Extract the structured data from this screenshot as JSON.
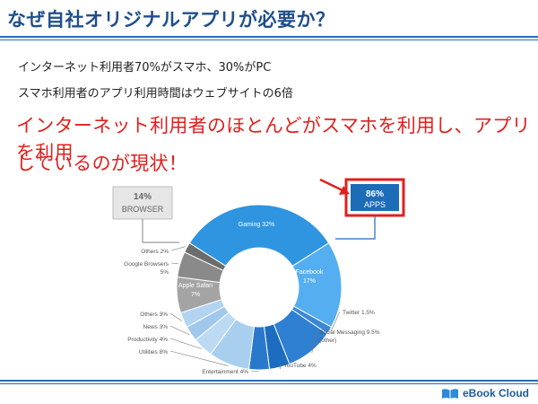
{
  "slide": {
    "title": "なぜ自社オリジナルアプリが必要か？",
    "bullets": [
      "インターネット利用者70%がスマホ、30%がPC",
      "スマホ利用者のアプリ利用時間はウェブサイトの6倍"
    ],
    "emphasis": [
      "インターネット利用者のほとんどがスマホを利用し、アプリを利用",
      "しているのが現状！"
    ]
  },
  "chart_data": {
    "type": "pie",
    "style": "donut",
    "groups": [
      {
        "percent": "86%",
        "label": "APPS",
        "color": "#1d6cb8"
      },
      {
        "percent": "14%",
        "label": "BROWSER",
        "color": "#8c8c8c"
      }
    ],
    "slices": [
      {
        "label": "Gaming 32%",
        "value": 32,
        "group": "APPS",
        "color": "#2f95e0"
      },
      {
        "label": "Facebook\n17%",
        "value": 17,
        "group": "APPS",
        "color": "#54aef0"
      },
      {
        "label": "Twitter 1.5%",
        "value": 1.5,
        "group": "APPS",
        "color": "#3c86d6"
      },
      {
        "label": "Social Messaging 9.5%\n(other)",
        "value": 9.5,
        "group": "APPS",
        "color": "#2f7fd3"
      },
      {
        "label": "YouTube 4%",
        "value": 4,
        "group": "APPS",
        "color": "#1c6cc0"
      },
      {
        "label": "Entertainment 4%",
        "value": 4,
        "group": "APPS",
        "color": "#2a78cc"
      },
      {
        "label": "Utilities 8%",
        "value": 8,
        "group": "APPS",
        "color": "#a9cfee"
      },
      {
        "label": "Productivity 4%",
        "value": 4,
        "group": "APPS",
        "color": "#bcdaf3"
      },
      {
        "label": "News 3%",
        "value": 3,
        "group": "APPS",
        "color": "#9fc8ec"
      },
      {
        "label": "Others 3%",
        "value": 3,
        "group": "APPS",
        "color": "#b3d4f1"
      },
      {
        "label": "Apple Safari\n7%",
        "value": 7,
        "group": "BROWSER",
        "color": "#a4a4a4"
      },
      {
        "label": "Google Browsers\n5%",
        "value": 5,
        "group": "BROWSER",
        "color": "#8a8a8a"
      },
      {
        "label": "Others 2%",
        "value": 2,
        "group": "BROWSER",
        "color": "#6c6c6c"
      }
    ],
    "highlight": {
      "group": "APPS",
      "color": "#e0201e"
    }
  },
  "footer": {
    "brand": "eBook Cloud"
  }
}
